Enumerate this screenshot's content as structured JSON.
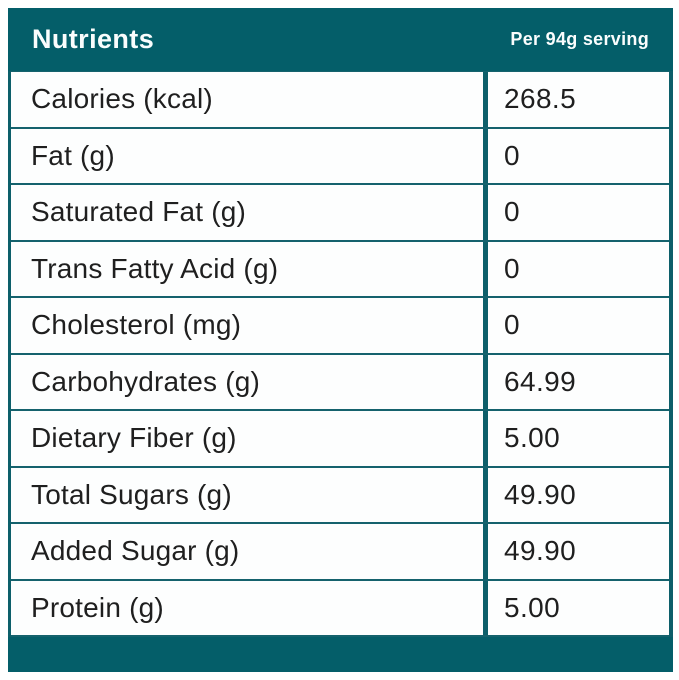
{
  "header": {
    "title": "Nutrients",
    "serving_label": "Per 94g serving"
  },
  "table": {
    "rows": [
      {
        "label": "Calories (kcal)",
        "value": "268.5"
      },
      {
        "label": "Fat (g)",
        "value": "0"
      },
      {
        "label": "Saturated Fat (g)",
        "value": "0"
      },
      {
        "label": "Trans Fatty Acid (g)",
        "value": "0"
      },
      {
        "label": "Cholesterol (mg)",
        "value": "0"
      },
      {
        "label": "Carbohydrates (g)",
        "value": "64.99"
      },
      {
        "label": "Dietary Fiber (g)",
        "value": "5.00"
      },
      {
        "label": "Total Sugars (g)",
        "value": "49.90"
      },
      {
        "label": "Added Sugar (g)",
        "value": "49.90"
      },
      {
        "label": "Protein (g)",
        "value": "5.00"
      }
    ]
  },
  "colors": {
    "teal_header": "#045e69",
    "teal_border": "#0d5f6a",
    "row_background": "#fdfefe",
    "header_text": "#fafdfd",
    "body_text": "#1f1f1f",
    "page_background": "#ffffff"
  }
}
